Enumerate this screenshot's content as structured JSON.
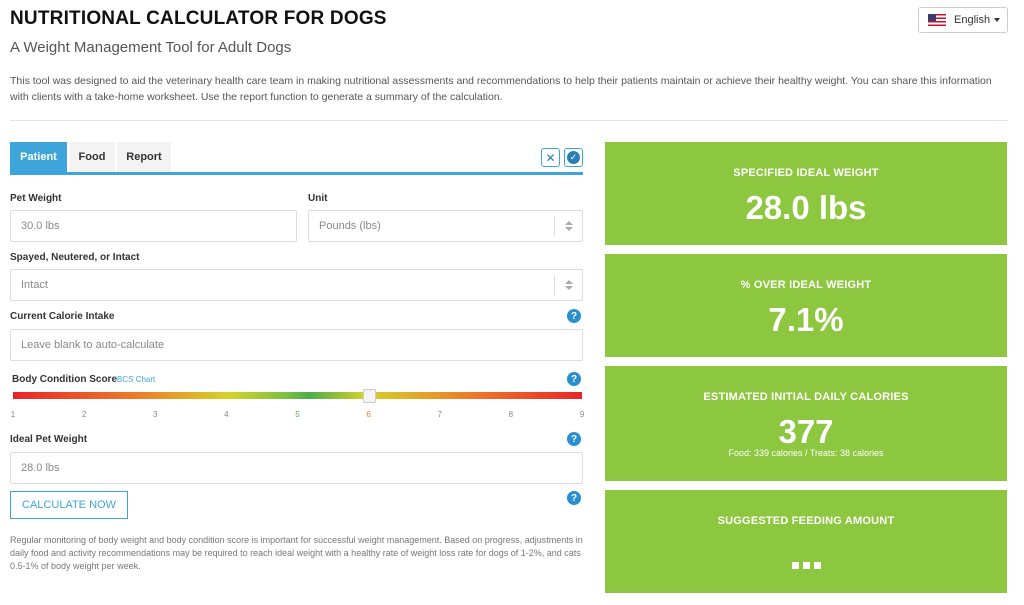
{
  "header": {
    "title": "NUTRITIONAL CALCULATOR FOR DOGS",
    "subtitle": "A Weight Management Tool for Adult Dogs",
    "language": "English",
    "intro": "This tool was designed to aid the veterinary health care team in making nutritional assessments and recommendations to help their patients maintain or achieve their healthy weight. You can share this information with clients with a take-home worksheet. Use the report function to generate a summary of the calculation."
  },
  "tabs": [
    {
      "label": "Patient",
      "active": true
    },
    {
      "label": "Food",
      "active": false
    },
    {
      "label": "Report",
      "active": false
    }
  ],
  "form": {
    "pet_weight_label": "Pet Weight",
    "pet_weight_placeholder": "30.0 lbs",
    "unit_label": "Unit",
    "unit_value": "Pounds (lbs)",
    "spay_label": "Spayed, Neutered, or Intact",
    "spay_value": "Intact",
    "calorie_label": "Current Calorie Intake",
    "calorie_placeholder": "Leave blank to auto-calculate",
    "bcs_label": "Body Condition Score",
    "bcs_link": "BCS Chart",
    "bcs_value": 6,
    "bcs_ticks": [
      "1",
      "2",
      "3",
      "4",
      "5",
      "6",
      "7",
      "8",
      "9"
    ],
    "ideal_label": "Ideal Pet Weight",
    "ideal_placeholder": "28.0 lbs",
    "calculate_label": "CALCULATE NOW",
    "note": "Regular monitoring of body weight and body condition score is important for successful weight management. Based on progress, adjustments in daily food and activity recommendations may be required to reach ideal weight with a healthy rate of weight loss rate for dogs of 1-2%, and cats 0.5-1% of body weight per week."
  },
  "results": {
    "ideal_weight_title": "SPECIFIED IDEAL WEIGHT",
    "ideal_weight_value": "28.0 lbs",
    "over_title": "% OVER IDEAL WEIGHT",
    "over_value": "7.1%",
    "calories_title": "ESTIMATED INITIAL DAILY CALORIES",
    "calories_value": "377",
    "calories_sub": "Food: 339 calories / Treats: 38 calories",
    "feeding_title": "SUGGESTED FEEDING AMOUNT"
  },
  "colors": {
    "accent": "#3ea5da",
    "card_green": "#8dc63f"
  }
}
